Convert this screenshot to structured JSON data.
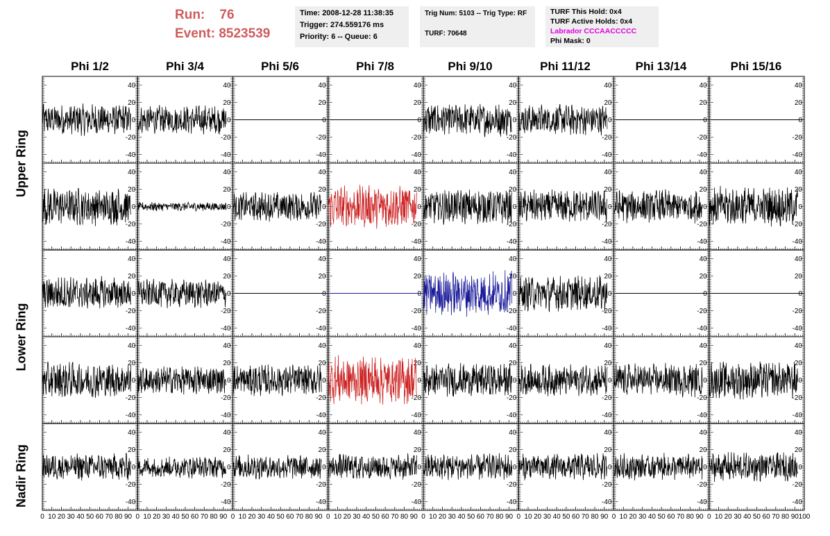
{
  "header": {
    "run_label": "Run:",
    "run_value": "76",
    "event_label": "Event:",
    "event_value": "8523539",
    "time": "Time: 2008-12-28 11:38:35",
    "trigger": "Trigger: 274.559176 ms",
    "priority": "Priority: 6 -- Queue: 6",
    "trig_num": "Trig Num: 5103 -- Trig Type: RF",
    "turf": "TURF: 70648",
    "turf_this_hold": "TURF This Hold: 0x4",
    "turf_active_holds": "TURF Active Holds: 0x4",
    "labrador": "Labrador CCCAACCCCC",
    "phi_mask": "Phi Mask: 0"
  },
  "colors": {
    "run_text": "#cd5c5c",
    "labrador_text": "#e000e0",
    "trace_default": "#000000",
    "trace_red": "#cc2222",
    "trace_blue": "#1a1a99",
    "info_bg": "#efefef"
  },
  "chart_data": {
    "type": "line",
    "columns": [
      "Phi 1/2",
      "Phi 3/4",
      "Phi 5/6",
      "Phi 7/8",
      "Phi 9/10",
      "Phi 11/12",
      "Phi 13/14",
      "Phi 15/16"
    ],
    "rows": [
      "Upper Ring",
      "Lower Ring",
      "Nadir Ring"
    ],
    "row_group_sizes": [
      2,
      2,
      1
    ],
    "xlim": [
      0,
      100
    ],
    "ylim": [
      -50,
      50
    ],
    "xticks": [
      0,
      10,
      20,
      30,
      40,
      50,
      60,
      70,
      80,
      90,
      100
    ],
    "xtick_labels": [
      "0",
      "10",
      "20",
      "30",
      "40",
      "50",
      "60",
      "70",
      "80",
      "90",
      "100"
    ],
    "yticks": [
      -40,
      -20,
      0,
      20,
      40
    ],
    "ytick_labels": [
      "-40",
      "-20",
      "0",
      "20",
      "40"
    ],
    "samples_per_trace": 260,
    "x_end": 93,
    "panels": [
      [
        {
          "amp": 14,
          "color": "black",
          "flat": false
        },
        {
          "amp": 13,
          "color": "black",
          "flat": false
        },
        {
          "amp": 0,
          "color": "black",
          "flat": true
        },
        {
          "amp": 0,
          "color": "black",
          "flat": true
        },
        {
          "amp": 15,
          "color": "black",
          "flat": false
        },
        {
          "amp": 14,
          "color": "black",
          "flat": false
        },
        {
          "amp": 0,
          "color": "black",
          "flat": true
        },
        {
          "amp": 0,
          "color": "black",
          "flat": true
        }
      ],
      [
        {
          "amp": 17,
          "color": "black",
          "flat": false
        },
        {
          "amp": 4,
          "color": "black",
          "flat": false
        },
        {
          "amp": 13,
          "color": "black",
          "flat": false
        },
        {
          "amp": 19,
          "color": "red",
          "flat": false
        },
        {
          "amp": 16,
          "color": "black",
          "flat": false
        },
        {
          "amp": 15,
          "color": "black",
          "flat": false
        },
        {
          "amp": 15,
          "color": "black",
          "flat": false
        },
        {
          "amp": 18,
          "color": "black",
          "flat": false
        }
      ],
      [
        {
          "amp": 15,
          "color": "black",
          "flat": false
        },
        {
          "amp": 13,
          "color": "black",
          "flat": false
        },
        {
          "amp": 0,
          "color": "black",
          "flat": true
        },
        {
          "amp": 0,
          "color": "blue",
          "flat": true
        },
        {
          "amp": 20,
          "color": "blue",
          "flat": false
        },
        {
          "amp": 16,
          "color": "black",
          "flat": false
        },
        {
          "amp": 0,
          "color": "black",
          "flat": true
        },
        {
          "amp": 0,
          "color": "black",
          "flat": true
        }
      ],
      [
        {
          "amp": 16,
          "color": "black",
          "flat": false
        },
        {
          "amp": 13,
          "color": "black",
          "flat": false
        },
        {
          "amp": 14,
          "color": "black",
          "flat": false
        },
        {
          "amp": 22,
          "color": "red",
          "flat": false
        },
        {
          "amp": 15,
          "color": "black",
          "flat": false
        },
        {
          "amp": 14,
          "color": "black",
          "flat": false
        },
        {
          "amp": 15,
          "color": "black",
          "flat": false
        },
        {
          "amp": 17,
          "color": "black",
          "flat": false
        }
      ],
      [
        {
          "amp": 12,
          "color": "black",
          "flat": false
        },
        {
          "amp": 10,
          "color": "black",
          "flat": false
        },
        {
          "amp": 11,
          "color": "black",
          "flat": false
        },
        {
          "amp": 12,
          "color": "black",
          "flat": false
        },
        {
          "amp": 12,
          "color": "black",
          "flat": false
        },
        {
          "amp": 12,
          "color": "black",
          "flat": false
        },
        {
          "amp": 12,
          "color": "black",
          "flat": false
        },
        {
          "amp": 13,
          "color": "black",
          "flat": false
        }
      ]
    ]
  }
}
